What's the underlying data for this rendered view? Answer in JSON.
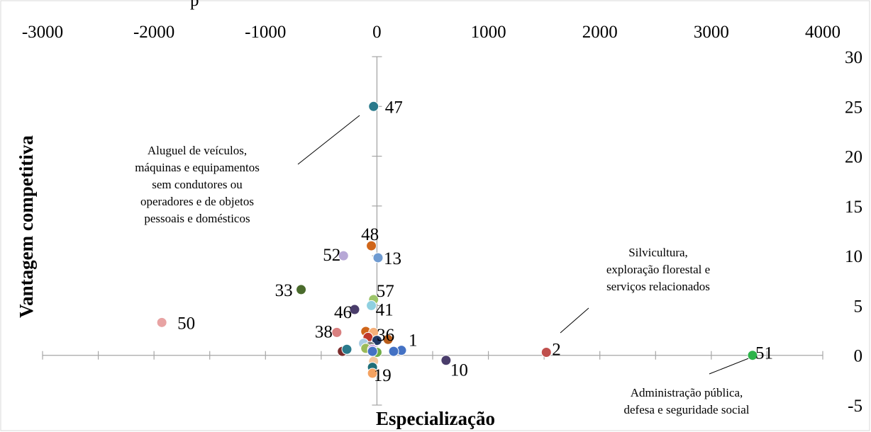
{
  "chart_data": {
    "type": "scatter",
    "title": "",
    "xlabel": "Especialização",
    "ylabel": "Vantagem competitiva",
    "xlim": [
      -3000,
      4000
    ],
    "ylim": [
      -5,
      30
    ],
    "xticks": [
      -3000,
      -2000,
      -1000,
      0,
      1000,
      2000,
      3000,
      4000
    ],
    "yticks": [
      30,
      25,
      20,
      15,
      10,
      5,
      0,
      -5
    ],
    "x_axis_tick_labels_position": "top",
    "y_axis_tick_labels_position": "right",
    "grid": false,
    "points": [
      {
        "label": "47",
        "x": -30,
        "y": 25.0,
        "color": "#2a7a8c"
      },
      {
        "label": "48",
        "x": -50,
        "y": 11.0,
        "color": "#d0661a"
      },
      {
        "label": "13",
        "x": 10,
        "y": 9.8,
        "color": "#6f9bd1"
      },
      {
        "label": "52",
        "x": -300,
        "y": 10.0,
        "color": "#b7a8d6"
      },
      {
        "label": "33",
        "x": -680,
        "y": 6.6,
        "color": "#4a6b2c"
      },
      {
        "label": "57",
        "x": -30,
        "y": 5.6,
        "color": "#9dc56a"
      },
      {
        "label": "41",
        "x": -50,
        "y": 5.0,
        "color": "#8fd0e0"
      },
      {
        "label": "46",
        "x": -200,
        "y": 4.6,
        "color": "#4a3d6b"
      },
      {
        "label": "50",
        "x": -1930,
        "y": 3.3,
        "color": "#e8a3a3"
      },
      {
        "label": "38",
        "x": -360,
        "y": 2.3,
        "color": "#d98080"
      },
      {
        "label": "36",
        "x": 100,
        "y": 1.6,
        "color": "#b85c1a"
      },
      {
        "label": "1",
        "x": 220,
        "y": 0.5,
        "color": "#4472c4"
      },
      {
        "label": "2",
        "x": 1520,
        "y": 0.3,
        "color": "#c0504d"
      },
      {
        "label": "10",
        "x": 620,
        "y": -0.5,
        "color": "#4a3d6b"
      },
      {
        "label": "19",
        "x": -30,
        "y": -0.6,
        "color": "#f2c69b"
      },
      {
        "label": "51",
        "x": 3370,
        "y": 0.0,
        "color": "#2db34a"
      },
      {
        "label": "",
        "x": -100,
        "y": 2.4,
        "color": "#d0661a"
      },
      {
        "label": "",
        "x": -30,
        "y": 2.3,
        "color": "#f5b07a"
      },
      {
        "label": "",
        "x": -80,
        "y": 1.8,
        "color": "#c0392b"
      },
      {
        "label": "",
        "x": 0,
        "y": 1.5,
        "color": "#1f3864"
      },
      {
        "label": "",
        "x": -120,
        "y": 1.2,
        "color": "#a9cce3"
      },
      {
        "label": "",
        "x": -60,
        "y": 0.9,
        "color": "#7f7f7f"
      },
      {
        "label": "",
        "x": -100,
        "y": 0.7,
        "color": "#9bbb59"
      },
      {
        "label": "",
        "x": -40,
        "y": 0.6,
        "color": "#c9a0dc"
      },
      {
        "label": "",
        "x": 0,
        "y": 0.3,
        "color": "#70ad47"
      },
      {
        "label": "",
        "x": -40,
        "y": 0.4,
        "color": "#4472c4"
      },
      {
        "label": "",
        "x": 150,
        "y": 0.4,
        "color": "#4472c4"
      },
      {
        "label": "",
        "x": -310,
        "y": 0.4,
        "color": "#7b2c2c"
      },
      {
        "label": "",
        "x": -270,
        "y": 0.6,
        "color": "#2a7a8c"
      },
      {
        "label": "",
        "x": -40,
        "y": -1.2,
        "color": "#1f6f78"
      },
      {
        "label": "",
        "x": -40,
        "y": -1.8,
        "color": "#f4a261"
      }
    ],
    "annotations": [
      {
        "lines": [
          "Aluguel de veículos,",
          "máquinas e equipamentos",
          "sem condutores ou",
          "operadores e de objetos",
          "pessoais e domésticos"
        ],
        "target": "47"
      },
      {
        "lines": [
          "Silvicultura,",
          "exploração florestal e",
          "serviços relacionados"
        ],
        "target": "2"
      },
      {
        "lines": [
          "Administração pública,",
          "defesa e seguridade social"
        ],
        "target": "51"
      }
    ],
    "top_text": "p"
  }
}
